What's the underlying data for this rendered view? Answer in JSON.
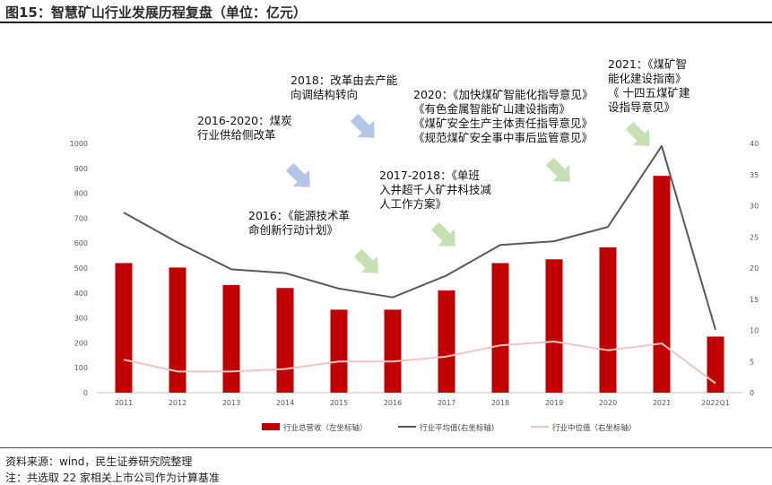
{
  "title": "图15：智慧矿山行业发展历程复盘（单位：亿元）",
  "source_note": "资料来源：wind，民生证券研究院整理",
  "footnote": "注：共选取 22 家相关上市公司作为计算基准",
  "colors": {
    "bar": "#c00000",
    "avg_line": "#595959",
    "median_line": "#f2c4c4",
    "arrow": "#c6e0b4",
    "arrow_blue": "#b4c7e7"
  },
  "chart_data": {
    "type": "bar",
    "categories": [
      "2011",
      "2012",
      "2013",
      "2014",
      "2015",
      "2016",
      "2017",
      "2018",
      "2019",
      "2020",
      "2021",
      "2022Q1"
    ],
    "left_axis": {
      "ylim": [
        0,
        1000
      ],
      "ticks": [
        "0",
        "100",
        "200",
        "300",
        "400",
        "500",
        "600",
        "700",
        "800",
        "900",
        "1000"
      ]
    },
    "right_axis": {
      "ylim": [
        0,
        40
      ],
      "ticks": [
        "0",
        "5",
        "10",
        "15",
        "20",
        "25",
        "30",
        "35",
        "40"
      ]
    },
    "series": [
      {
        "name": "行业总营收（左坐标轴）",
        "kind": "bar",
        "axis": "left",
        "values": [
          520,
          502,
          432,
          420,
          333,
          333,
          410,
          520,
          535,
          583,
          870,
          225
        ]
      },
      {
        "name": "行业平均值(右坐标轴)",
        "kind": "line",
        "axis": "right",
        "values": [
          28.9,
          24.1,
          19.8,
          19.2,
          16.7,
          15.3,
          18.8,
          23.7,
          24.3,
          26.6,
          39.6,
          10.1
        ]
      },
      {
        "name": "行业中位值（右坐标轴）",
        "kind": "line",
        "axis": "right",
        "values": [
          5.3,
          3.4,
          3.4,
          3.8,
          5.0,
          5.0,
          5.8,
          7.6,
          8.2,
          6.8,
          7.9,
          1.5
        ]
      }
    ],
    "annotations": [
      {
        "lines": [
          "2018：改革由去产能",
          "向调结构转向"
        ]
      },
      {
        "lines": [
          "2016-2020：煤炭",
          "行业供给侧改革"
        ]
      },
      {
        "lines": [
          "2016：《能源技术革",
          "命创新行动计划》"
        ]
      },
      {
        "lines": [
          "2017-2018：《单班",
          "入井超千人矿井科技减",
          "人工作方案》"
        ]
      },
      {
        "lines": [
          "2020：《加快煤矿智能化指导意见》",
          "《有色金属智能矿山建设指南》",
          "《煤矿安全生产主体责任指导意见》",
          "《规范煤矿安全事中事后监管意见》"
        ]
      },
      {
        "lines": [
          "2021：《煤矿智",
          "能化建设指南》",
          "《 十四五煤矿建",
          "设指导意见》"
        ]
      }
    ]
  }
}
